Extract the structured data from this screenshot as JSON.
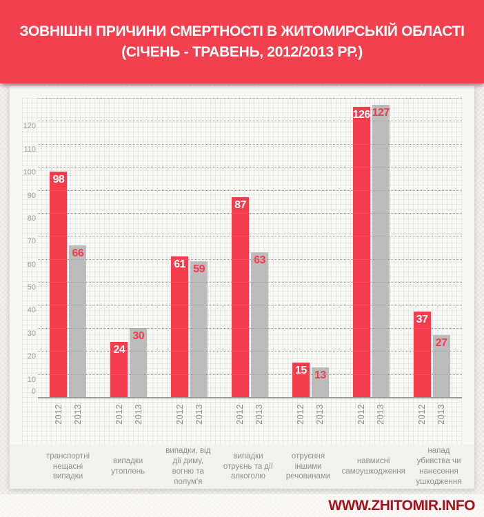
{
  "banner": {
    "title_line1": "ЗОВНІШНІ ПРИЧИНИ СМЕРТНОСТІ В ЖИТОМИРСЬКІЙ ОБЛАСТІ",
    "title_line2": "(СІЧЕНЬ - ТРАВЕНЬ, 2012/2013 РР.)"
  },
  "watermark": "WWW.ZHITOMIR.INFO",
  "colors": {
    "banner_red": "#f2404e",
    "bar_red": "#f43c4c",
    "bar_gray": "#bcbcbc",
    "value_label_on_red": "#ffffff",
    "value_label_on_gray": "#f2394a",
    "grid": "#9b9b9b",
    "axis_text": "#9a9a9a",
    "category_text": "#8e8e8e",
    "watermark_red": "#a8121b"
  },
  "chart_data": {
    "type": "bar",
    "title": "Зовнішні причини смертності в Житомирській області (січень - травень, 2012/2013 рр.)",
    "categories": [
      "транспортні нещасні випадки",
      "випадки утоплень",
      "випадки, від дії диму, вогню та полум'я",
      "випадки отруєнь та дії алкоголю",
      "отруєння іншими речовинами",
      "навмисні самоушкодження",
      "напад убивства чи нанесення ушкодження"
    ],
    "series": [
      {
        "name": "2012",
        "color": "#f43c4c",
        "value_label_color": "#ffffff",
        "values": [
          98,
          24,
          61,
          87,
          15,
          126,
          37
        ]
      },
      {
        "name": "2013",
        "color": "#bcbcbc",
        "value_label_color": "#f2394a",
        "values": [
          66,
          30,
          59,
          63,
          13,
          127,
          27
        ]
      }
    ],
    "xlabel": "",
    "ylabel": "",
    "ylim": [
      0,
      130
    ],
    "yticks": [
      0,
      10,
      20,
      30,
      40,
      50,
      60,
      70,
      80,
      90,
      100,
      110,
      120
    ],
    "grid": true,
    "legend_position": "none",
    "bar_value_labels_inside_top": true
  }
}
